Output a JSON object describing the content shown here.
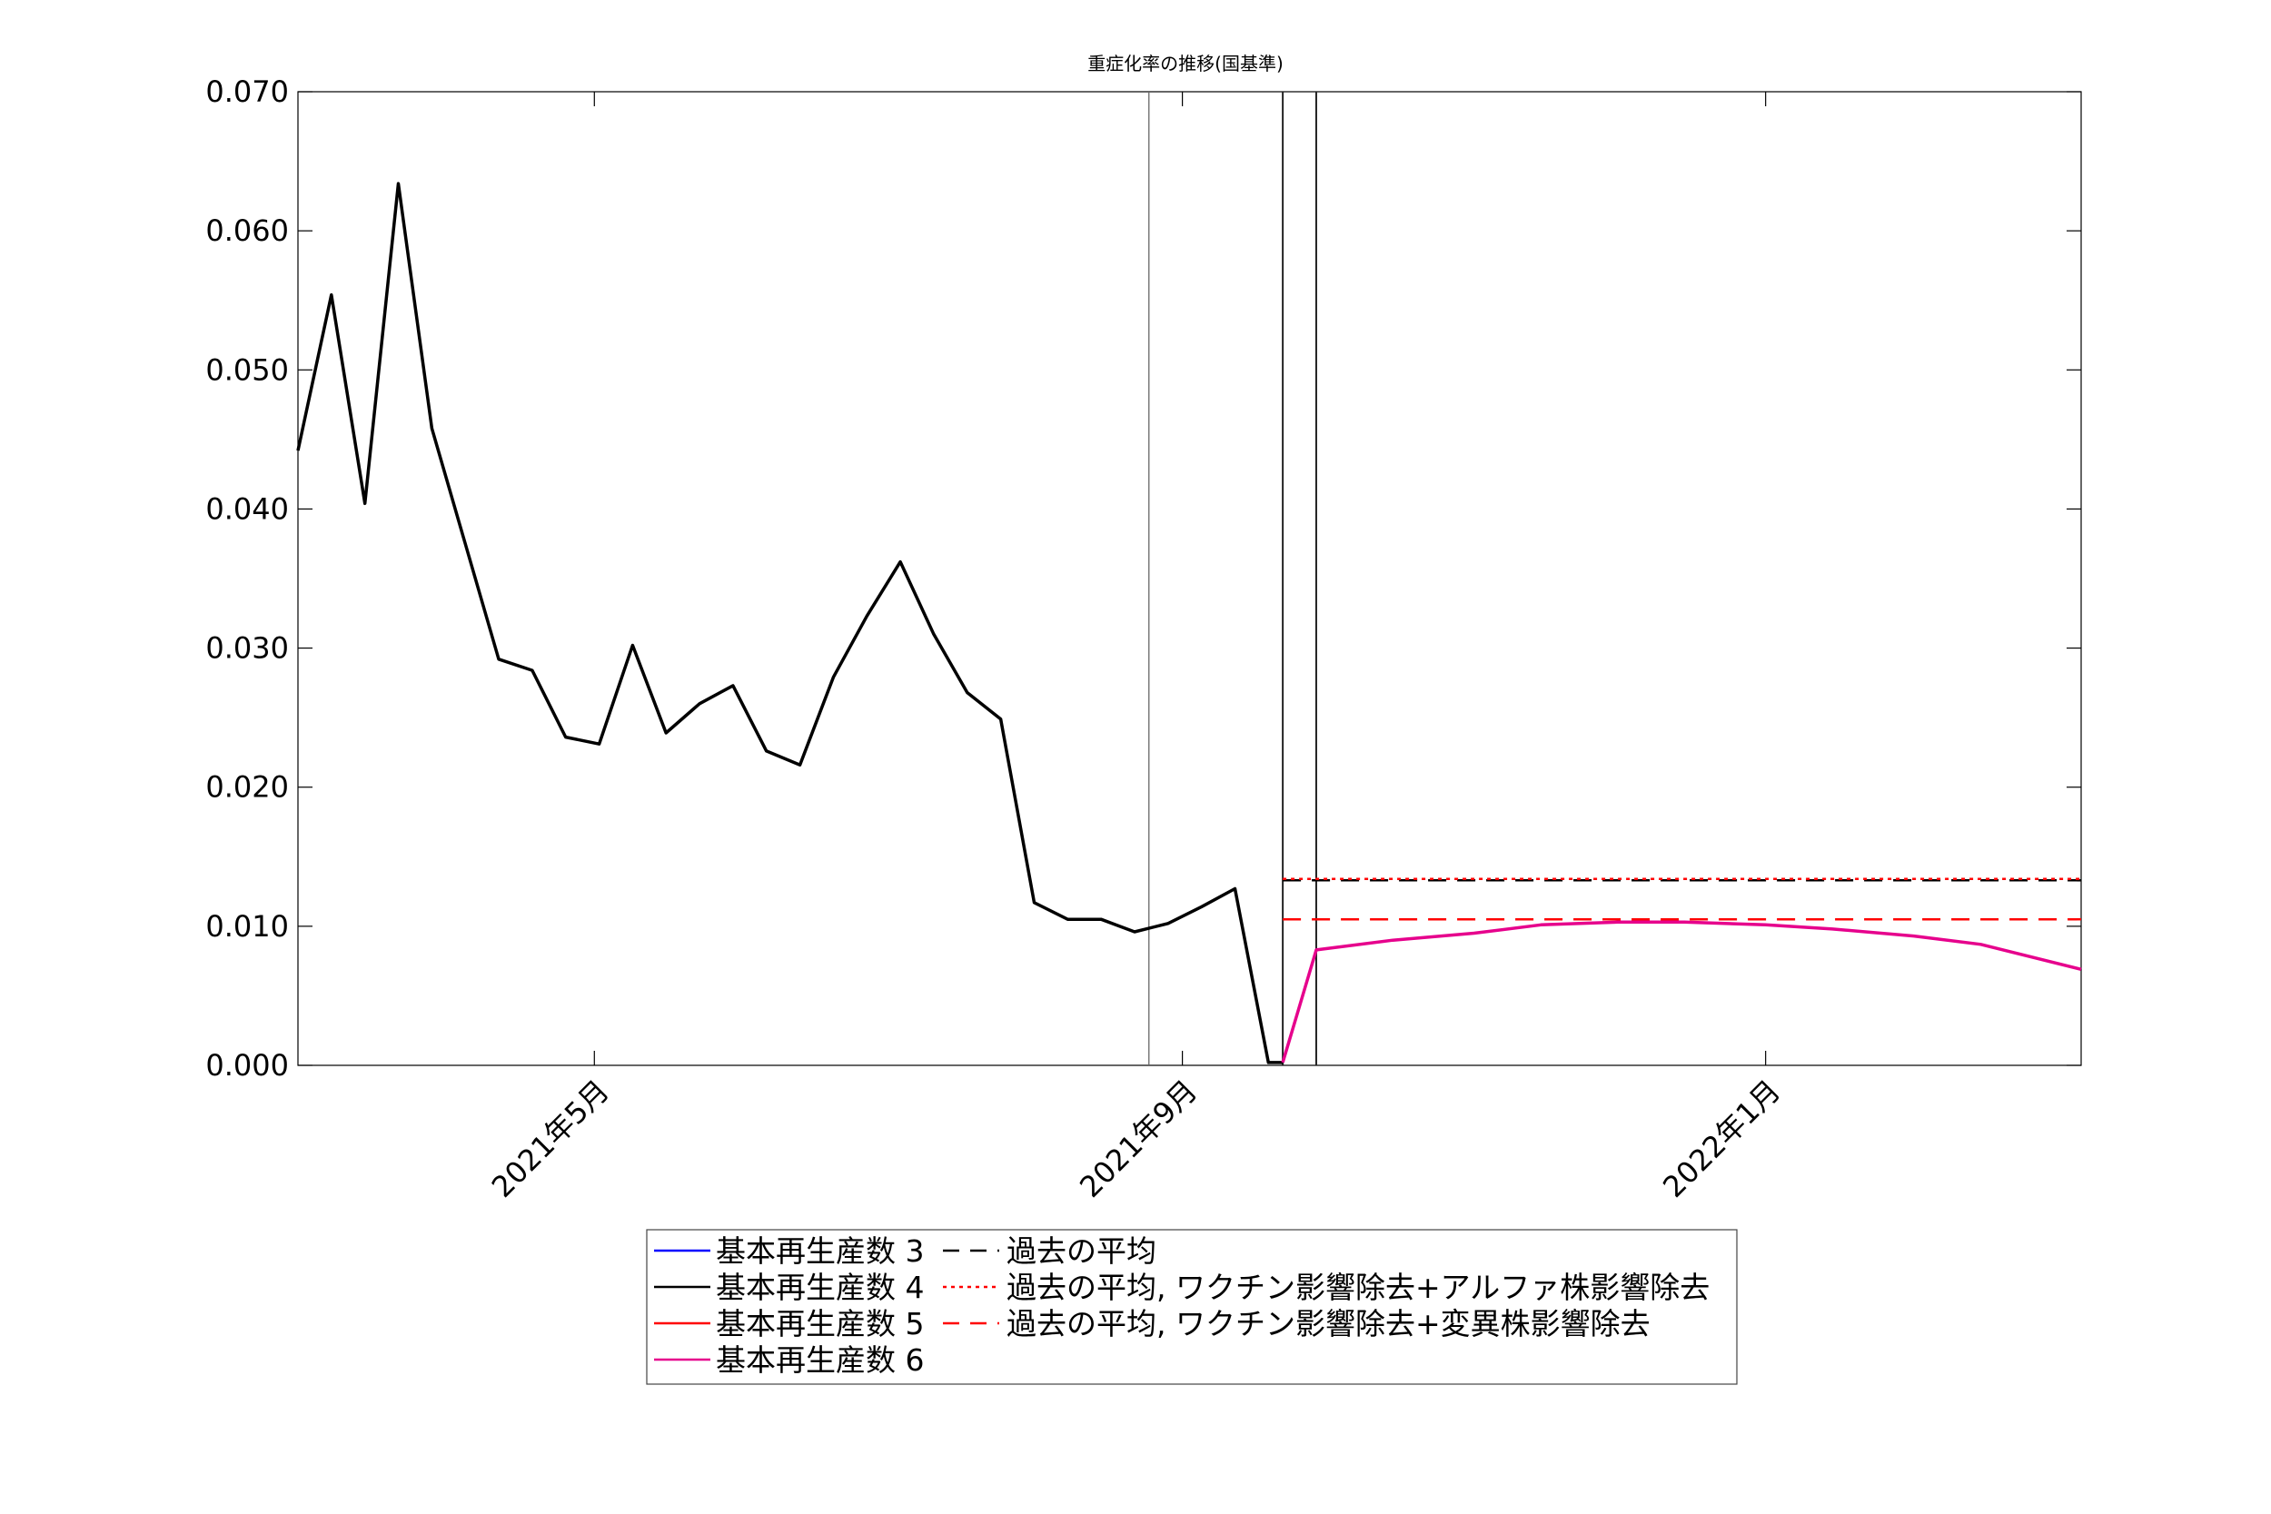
{
  "chart_data": {
    "type": "line",
    "title": "重症化率の推移(国基準)",
    "xlabel": "",
    "ylabel": "",
    "ylim": [
      0,
      0.07
    ],
    "xlim": [
      "2021-02-28",
      "2022-03-08"
    ],
    "y_ticks": [
      "0.000",
      "0.010",
      "0.020",
      "0.030",
      "0.040",
      "0.050",
      "0.060",
      "0.070"
    ],
    "x_ticks": [
      {
        "date": "2021-05-01",
        "label": "2021年5月"
      },
      {
        "date": "2021-09-01",
        "label": "2021年9月"
      },
      {
        "date": "2022-01-01",
        "label": "2022年1月"
      }
    ],
    "grid": false,
    "vertical_markers": [
      "2021-08-25",
      "2021-09-22",
      "2021-09-29"
    ],
    "legend_position": "below chart",
    "series": [
      {
        "name": "基本再生産数 3",
        "color": "#0000ff",
        "style": "solid",
        "visible_points": []
      },
      {
        "name": "基本再生産数 4",
        "color": "#000000",
        "style": "solid",
        "x": [
          "2021-02-28",
          "2021-03-07",
          "2021-03-14",
          "2021-03-21",
          "2021-03-28",
          "2021-04-04",
          "2021-04-11",
          "2021-04-18",
          "2021-04-25",
          "2021-05-02",
          "2021-05-09",
          "2021-05-16",
          "2021-05-23",
          "2021-05-30",
          "2021-06-06",
          "2021-06-13",
          "2021-06-20",
          "2021-06-27",
          "2021-07-04",
          "2021-07-11",
          "2021-07-18",
          "2021-07-25",
          "2021-08-01",
          "2021-08-08",
          "2021-08-15",
          "2021-08-22",
          "2021-08-29",
          "2021-09-05",
          "2021-09-12",
          "2021-09-19",
          "2021-09-22"
        ],
        "y": [
          0.0442,
          0.0554,
          0.0404,
          0.0634,
          0.0458,
          0.0375,
          0.0292,
          0.0284,
          0.0236,
          0.0231,
          0.0302,
          0.0239,
          0.026,
          0.0273,
          0.0226,
          0.0216,
          0.0279,
          0.0323,
          0.0362,
          0.031,
          0.0268,
          0.0249,
          0.0117,
          0.0105,
          0.0105,
          0.0096,
          0.0102,
          0.0114,
          0.0127,
          0.0002,
          0.0002
        ]
      },
      {
        "name": "基本再生産数 5",
        "color": "#ff0000",
        "style": "solid",
        "visible_points": []
      },
      {
        "name": "基本再生産数 6",
        "color": "#e6008c",
        "style": "solid",
        "x": [
          "2021-09-22",
          "2021-09-29",
          "2021-10-15",
          "2021-11-01",
          "2021-11-15",
          "2021-12-01",
          "2021-12-15",
          "2022-01-01",
          "2022-01-15",
          "2022-02-01",
          "2022-02-15",
          "2022-03-08"
        ],
        "y": [
          0.0002,
          0.0083,
          0.009,
          0.0095,
          0.0101,
          0.0103,
          0.0103,
          0.0101,
          0.0098,
          0.0093,
          0.0087,
          0.0069
        ]
      },
      {
        "name": "過去の平均",
        "color": "#000000",
        "style": "dashed",
        "x": [
          "2021-09-22",
          "2022-03-08"
        ],
        "y": [
          0.0133,
          0.0133
        ]
      },
      {
        "name": "過去の平均, ワクチン影響除去+アルファ株影響除去",
        "color": "#ff0000",
        "style": "dotted",
        "x": [
          "2021-09-22",
          "2022-03-08"
        ],
        "y": [
          0.0134,
          0.0134
        ]
      },
      {
        "name": "過去の平均, ワクチン影響除去+変異株影響除去",
        "color": "#ff0000",
        "style": "dashed",
        "x": [
          "2021-09-22",
          "2022-03-08"
        ],
        "y": [
          0.0105,
          0.0105
        ]
      }
    ]
  }
}
